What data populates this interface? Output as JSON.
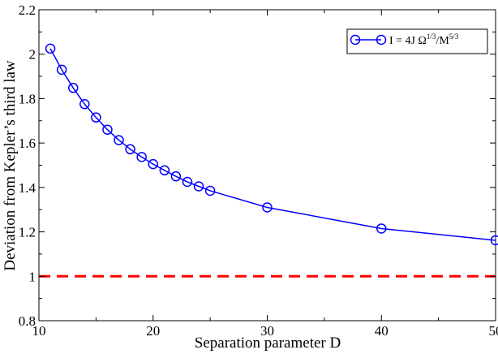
{
  "chart_data": {
    "type": "line",
    "xlabel": "Separation parameter D",
    "ylabel": "Deviation from Kepler’s third law",
    "xlim": [
      10,
      50
    ],
    "ylim": [
      0.8,
      2.2
    ],
    "xticks": [
      "10",
      "20",
      "30",
      "40",
      "50"
    ],
    "yticks": [
      "0.8",
      "1",
      "1.2",
      "1.4",
      "1.6",
      "1.8",
      "2",
      "2.2"
    ],
    "legend_position": "top-right",
    "grid": false,
    "series": [
      {
        "name": "I = 4J Ω^(1/3)/M^(5/3)",
        "color": "#0000ff",
        "marker": "open-circle",
        "x": [
          11,
          12,
          13,
          14,
          15,
          16,
          17,
          18,
          19,
          20,
          21,
          22,
          23,
          24,
          25,
          30,
          40,
          50
        ],
        "y": [
          2.025,
          1.93,
          1.848,
          1.775,
          1.715,
          1.66,
          1.613,
          1.572,
          1.537,
          1.505,
          1.477,
          1.45,
          1.425,
          1.405,
          1.385,
          1.31,
          1.215,
          1.162
        ]
      }
    ],
    "reference_line": {
      "y": 1.0,
      "color": "#ff0000",
      "style": "dashed"
    }
  },
  "legend": {
    "prefix": "I = 4J Ω",
    "sup1": "1/3",
    "mid": "/M",
    "sup2": "5/3"
  }
}
